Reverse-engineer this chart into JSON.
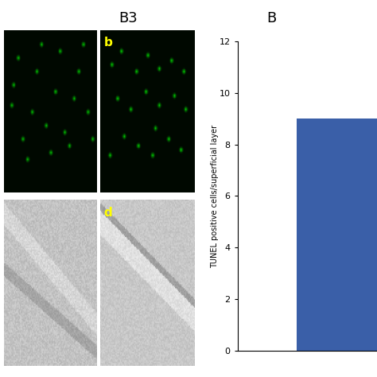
{
  "title_left": "B3",
  "title_right": "B",
  "ylabel": "TUNEL positive cells/superficial layer",
  "ylim": [
    0,
    12
  ],
  "yticks": [
    0,
    2,
    4,
    6,
    8,
    10,
    12
  ],
  "bar_value": 9.0,
  "bar_color": "#3a5fa8",
  "bar_width": 0.6,
  "background_color": "#ffffff",
  "image_label_b": "b",
  "image_label_d": "d",
  "label_color": "#ffff00",
  "label_fontsize": 11,
  "title_fontsize": 13
}
